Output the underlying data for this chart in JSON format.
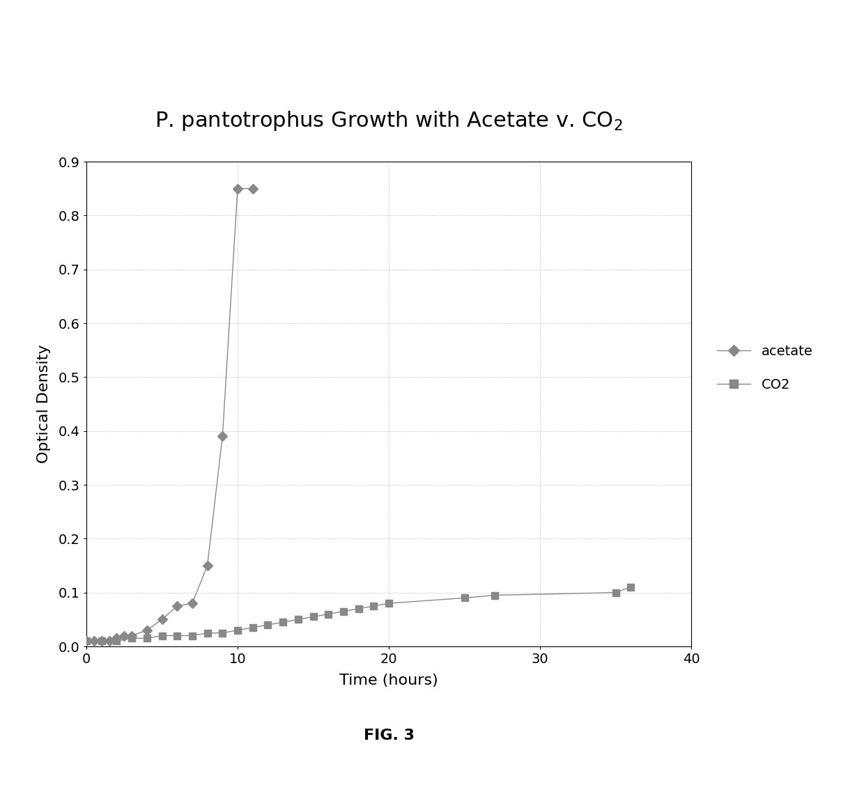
{
  "title": "P. pantotrophus Growth with Acetate v. CO$_2$",
  "xlabel": "Time (hours)",
  "ylabel": "Optical Density",
  "xlim": [
    0,
    40
  ],
  "ylim": [
    0,
    0.9
  ],
  "xticks": [
    0,
    10,
    20,
    30,
    40
  ],
  "yticks": [
    0,
    0.1,
    0.2,
    0.3,
    0.4,
    0.5,
    0.6,
    0.7,
    0.8,
    0.9
  ],
  "acetate_x": [
    0,
    0.5,
    1,
    1.5,
    2,
    2.5,
    3,
    4,
    5,
    6,
    7,
    8,
    9,
    10,
    11
  ],
  "acetate_y": [
    0.01,
    0.01,
    0.01,
    0.01,
    0.015,
    0.02,
    0.02,
    0.03,
    0.05,
    0.075,
    0.08,
    0.15,
    0.39,
    0.85,
    0.85
  ],
  "co2_x": [
    0,
    1,
    2,
    3,
    4,
    5,
    6,
    7,
    8,
    9,
    10,
    11,
    12,
    13,
    14,
    15,
    16,
    17,
    18,
    19,
    20,
    25,
    27,
    35,
    36
  ],
  "co2_y": [
    0.01,
    0.01,
    0.01,
    0.015,
    0.015,
    0.02,
    0.02,
    0.02,
    0.025,
    0.025,
    0.03,
    0.035,
    0.04,
    0.045,
    0.05,
    0.055,
    0.06,
    0.065,
    0.07,
    0.075,
    0.08,
    0.09,
    0.095,
    0.1,
    0.11
  ],
  "line_color": "#888888",
  "marker_acetate_color": "#888888",
  "marker_co2_color": "#888888",
  "background_color": "#ffffff",
  "legend_acetate": "acetate",
  "legend_co2": "CO2",
  "fig_label": "FIG. 3",
  "title_fontsize": 22,
  "axis_label_fontsize": 16,
  "tick_fontsize": 14,
  "legend_fontsize": 14
}
